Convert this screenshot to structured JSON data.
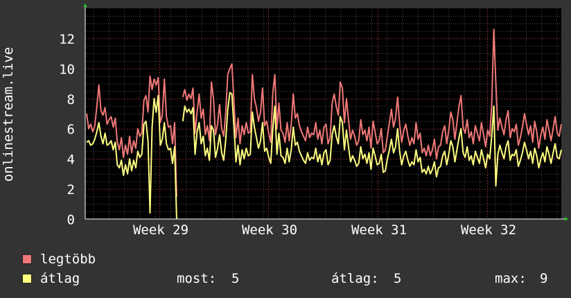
{
  "chart_data": {
    "type": "line",
    "ylabel": "onlinestream.live",
    "ylim": [
      0,
      14
    ],
    "yticks": [
      0,
      2,
      4,
      6,
      8,
      10,
      12
    ],
    "x_tick_labels": [
      "Week 29",
      "Week 30",
      "Week 31",
      "Week 32"
    ],
    "grid": true,
    "colors": {
      "background": "#333333",
      "plot_bg": "#000000",
      "grid_major": "#7a2a2a",
      "grid_minor": "#4a4a4a",
      "legteobb": "#f07878",
      "atlag": "#ffff80"
    },
    "series": [
      {
        "name": "legtöbb",
        "color": "#f07878",
        "values": [
          7.0,
          6.0,
          6.3,
          5.8,
          6.2,
          7.5,
          8.9,
          7.2,
          6.9,
          7.4,
          6.3,
          6.6,
          6.8,
          6.1,
          6.7,
          5.1,
          4.6,
          5.4,
          4.1,
          4.9,
          4.3,
          5.5,
          4.4,
          5.2,
          4.7,
          6.0,
          5.5,
          5.7,
          7.9,
          8.2,
          7.1,
          9.5,
          8.6,
          9.3,
          8.9,
          9.4,
          6.4,
          6.9,
          9.3,
          6.8,
          6.1,
          6.2,
          5.0,
          6.4,
          1.5,
          null,
          null,
          8.1,
          8.6,
          7.9,
          8.3,
          8.0,
          8.7,
          5.7,
          7.1,
          8.3,
          6.7,
          7.3,
          5.6,
          6.2,
          5.2,
          9.1,
          8.0,
          5.6,
          6.3,
          7.6,
          6.0,
          5.5,
          7.1,
          9.6,
          10.0,
          10.3,
          7.8,
          5.4,
          6.7,
          5.0,
          6.2,
          5.6,
          6.4,
          5.7,
          5.8,
          9.6,
          8.0,
          7.4,
          6.5,
          7.1,
          8.7,
          6.2,
          6.5,
          5.7,
          5.1,
          8.4,
          9.6,
          6.0,
          7.7,
          5.9,
          5.7,
          5.1,
          6.4,
          5.2,
          6.3,
          8.3,
          6.7,
          7.0,
          6.2,
          5.8,
          5.5,
          5.2,
          6.1,
          5.4,
          5.7,
          5.6,
          6.4,
          5.3,
          5.9,
          5.0,
          6.1,
          6.3,
          5.0,
          5.4,
          7.7,
          8.3,
          7.5,
          6.9,
          9.1,
          8.7,
          6.4,
          8.0,
          6.6,
          5.3,
          5.9,
          5.5,
          4.9,
          5.2,
          6.6,
          5.6,
          5.9,
          5.2,
          6.1,
          4.7,
          6.5,
          5.8,
          5.0,
          5.2,
          6.0,
          4.4,
          4.6,
          5.5,
          6.4,
          7.3,
          6.1,
          6.7,
          8.1,
          6.3,
          5.1,
          5.9,
          6.3,
          5.5,
          4.9,
          5.4,
          5.0,
          6.4,
          5.3,
          5.7,
          4.4,
          4.7,
          4.2,
          4.9,
          4.2,
          4.6,
          5.3,
          4.0,
          4.8,
          4.9,
          5.8,
          6.2,
          5.0,
          5.9,
          7.1,
          6.6,
          5.3,
          6.4,
          7.5,
          8.2,
          6.1,
          5.7,
          6.6,
          5.4,
          5.8,
          5.0,
          6.2,
          5.7,
          5.2,
          6.4,
          5.6,
          4.8,
          5.9,
          5.5,
          7.6,
          12.6,
          9.1,
          5.9,
          6.7,
          6.1,
          5.6,
          6.6,
          7.2,
          5.4,
          6.0,
          5.8,
          6.3,
          4.9,
          5.4,
          6.1,
          7.0,
          6.3,
          5.6,
          6.2,
          5.1,
          6.5,
          5.8,
          4.7,
          5.6,
          6.1,
          5.3,
          6.6,
          5.9,
          5.2,
          6.0,
          6.8,
          5.7,
          5.5,
          6.3
        ]
      },
      {
        "name": "átlag",
        "color": "#ffff80",
        "values": [
          5.1,
          5.2,
          4.9,
          5.0,
          5.3,
          5.8,
          6.4,
          5.5,
          5.0,
          5.7,
          4.9,
          5.0,
          5.2,
          4.6,
          5.1,
          3.6,
          3.4,
          3.9,
          2.9,
          3.6,
          3.0,
          4.0,
          3.2,
          3.9,
          3.4,
          4.5,
          4.1,
          4.3,
          6.3,
          6.5,
          5.2,
          0.4,
          6.1,
          8.0,
          7.1,
          8.2,
          4.9,
          5.3,
          6.4,
          5.0,
          4.6,
          4.7,
          3.7,
          4.8,
          0.0,
          null,
          null,
          6.5,
          7.5,
          7.1,
          7.3,
          7.0,
          7.4,
          4.3,
          5.8,
          6.4,
          5.0,
          5.5,
          4.2,
          4.7,
          3.9,
          6.2,
          5.9,
          4.1,
          4.7,
          5.6,
          4.4,
          3.9,
          5.3,
          7.3,
          8.4,
          8.3,
          6.2,
          3.8,
          4.9,
          3.6,
          4.6,
          4.0,
          4.7,
          4.2,
          4.3,
          7.1,
          6.1,
          5.4,
          4.7,
          5.2,
          6.4,
          4.5,
          4.7,
          4.1,
          3.7,
          6.0,
          7.5,
          4.3,
          5.7,
          4.2,
          4.1,
          3.7,
          4.7,
          3.8,
          4.6,
          6.1,
          4.9,
          5.1,
          4.5,
          4.2,
          3.9,
          3.7,
          4.4,
          3.9,
          4.1,
          4.0,
          4.7,
          3.8,
          4.3,
          3.6,
          4.4,
          4.6,
          3.6,
          3.9,
          5.6,
          6.2,
          5.5,
          5.0,
          6.8,
          6.4,
          4.6,
          5.9,
          4.8,
          3.8,
          4.2,
          3.9,
          3.5,
          3.7,
          4.8,
          4.0,
          4.3,
          3.7,
          4.4,
          3.3,
          4.7,
          4.2,
          3.6,
          3.7,
          4.3,
          3.1,
          3.2,
          4.0,
          4.6,
          5.3,
          4.4,
          4.8,
          6.0,
          4.5,
          3.6,
          4.2,
          4.5,
          3.9,
          3.5,
          3.8,
          3.6,
          4.6,
          3.8,
          4.1,
          3.1,
          3.3,
          3.0,
          3.5,
          3.0,
          3.3,
          3.8,
          2.8,
          3.4,
          3.5,
          4.2,
          4.5,
          3.6,
          4.3,
          5.2,
          4.8,
          3.8,
          4.6,
          5.4,
          6.0,
          4.4,
          4.1,
          4.8,
          3.9,
          4.2,
          3.6,
          4.5,
          4.1,
          3.7,
          4.6,
          4.0,
          3.4,
          4.3,
          4.0,
          5.5,
          7.5,
          2.2,
          4.3,
          4.9,
          4.4,
          4.0,
          4.8,
          5.2,
          3.9,
          4.3,
          4.2,
          4.6,
          3.5,
          3.9,
          4.4,
          5.1,
          4.6,
          4.0,
          4.5,
          3.7,
          4.7,
          4.2,
          3.4,
          4.0,
          4.4,
          3.8,
          4.8,
          4.3,
          3.7,
          4.4,
          5.0,
          4.1,
          4.0,
          4.6
        ]
      }
    ]
  },
  "legend": {
    "legteobb_label": "legtöbb",
    "atlag_label": "átlag",
    "most_label": "most:",
    "most_value": "5",
    "atlag_stat_label": "átlag:",
    "atlag_stat_value": "5",
    "max_label": "max:",
    "max_value": "9"
  }
}
